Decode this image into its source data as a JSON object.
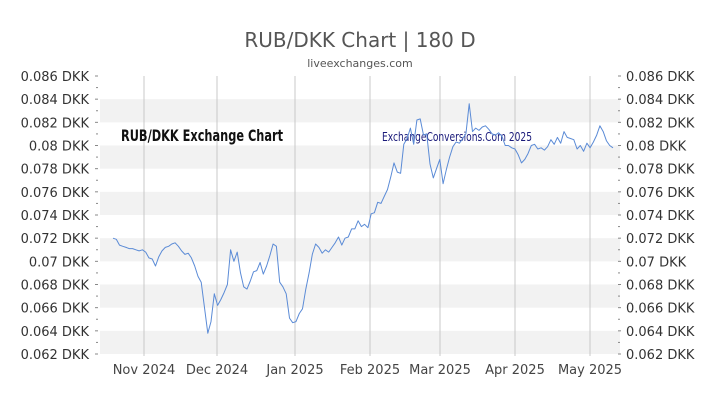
{
  "header": {
    "title": "RUB/DKK Chart | 180 D",
    "subtitle": "liveexchanges.com"
  },
  "watermarks": {
    "left": "RUB/DKK Exchange Chart",
    "right": "ExchangeConversions.Com 2025"
  },
  "colors": {
    "line": "#5b8bd6",
    "band": "#f2f2f2",
    "vgrid": "#c8c8c8"
  },
  "chart_data": {
    "type": "line",
    "title": "RUB/DKK Chart | 180 D",
    "ylim": [
      0.062,
      0.086
    ],
    "y_ticks": [
      {
        "value": 0.086,
        "label": "0.086 DKK"
      },
      {
        "value": 0.084,
        "label": "0.084 DKK"
      },
      {
        "value": 0.082,
        "label": "0.082 DKK"
      },
      {
        "value": 0.08,
        "label": "0.08 DKK"
      },
      {
        "value": 0.078,
        "label": "0.078 DKK"
      },
      {
        "value": 0.076,
        "label": "0.076 DKK"
      },
      {
        "value": 0.074,
        "label": "0.074 DKK"
      },
      {
        "value": 0.072,
        "label": "0.072 DKK"
      },
      {
        "value": 0.07,
        "label": "0.07 DKK"
      },
      {
        "value": 0.068,
        "label": "0.068 DKK"
      },
      {
        "value": 0.066,
        "label": "0.066 DKK"
      },
      {
        "value": 0.064,
        "label": "0.064 DKK"
      },
      {
        "value": 0.062,
        "label": "0.062 DKK"
      }
    ],
    "x_ticks": [
      "Nov 2024",
      "Dec 2024",
      "Jan 2025",
      "Feb 2025",
      "Mar 2025",
      "Apr 2025",
      "May 2025"
    ],
    "grid": "horizontal-bands-and-vertical-month-lines",
    "series": [
      {
        "values": [
          0.072,
          0.0719,
          0.0714,
          0.0713,
          0.0712,
          0.0711,
          0.0711,
          0.071,
          0.0709,
          0.071,
          0.0708,
          0.0703,
          0.0702,
          0.0696,
          0.0704,
          0.0709,
          0.0712,
          0.0713,
          0.0715,
          0.0716,
          0.0713,
          0.0709,
          0.0706,
          0.0707,
          0.0703,
          0.0696,
          0.0687,
          0.0682,
          0.066,
          0.0638,
          0.0648,
          0.0672,
          0.0662,
          0.0667,
          0.0673,
          0.068,
          0.071,
          0.07,
          0.0708,
          0.069,
          0.0678,
          0.0676,
          0.0683,
          0.0691,
          0.0692,
          0.0699,
          0.0689,
          0.0696,
          0.0705,
          0.0715,
          0.0713,
          0.0682,
          0.0678,
          0.0672,
          0.0651,
          0.0647,
          0.0648,
          0.0655,
          0.0659,
          0.0676,
          0.069,
          0.0706,
          0.0715,
          0.0712,
          0.0707,
          0.071,
          0.0708,
          0.0712,
          0.0716,
          0.0721,
          0.0714,
          0.072,
          0.0721,
          0.0728,
          0.0728,
          0.0735,
          0.073,
          0.0732,
          0.0729,
          0.0741,
          0.0742,
          0.0751,
          0.075,
          0.0756,
          0.0762,
          0.0773,
          0.0785,
          0.0777,
          0.0776,
          0.0801,
          0.0806,
          0.0815,
          0.0801,
          0.0822,
          0.0823,
          0.0809,
          0.081,
          0.0784,
          0.0772,
          0.078,
          0.0788,
          0.0767,
          0.0779,
          0.079,
          0.0799,
          0.0803,
          0.0802,
          0.0806,
          0.081,
          0.0836,
          0.0812,
          0.0815,
          0.0813,
          0.0816,
          0.0817,
          0.0814,
          0.081,
          0.0809,
          0.0811,
          0.0808,
          0.08,
          0.08,
          0.0798,
          0.0797,
          0.0792,
          0.0785,
          0.0788,
          0.0793,
          0.08,
          0.0801,
          0.0797,
          0.0798,
          0.0796,
          0.0799,
          0.0805,
          0.0801,
          0.0807,
          0.0802,
          0.0812,
          0.0807,
          0.0806,
          0.0805,
          0.0797,
          0.08,
          0.0795,
          0.0802,
          0.0798,
          0.0803,
          0.0809,
          0.0817,
          0.0812,
          0.0804,
          0.08,
          0.0798
        ]
      }
    ]
  }
}
